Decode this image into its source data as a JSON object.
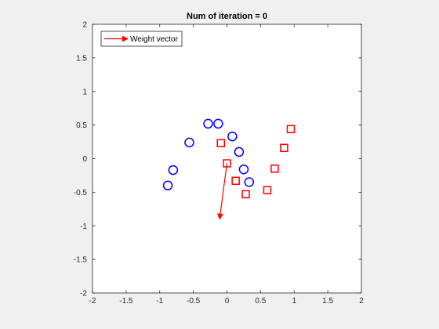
{
  "chart_data": {
    "type": "scatter",
    "title": "Num of iteration = 0",
    "xlabel": "",
    "ylabel": "",
    "xlim": [
      -2,
      2
    ],
    "ylim": [
      -2,
      2
    ],
    "x_ticks": [
      "-2",
      "-1.5",
      "-1",
      "-0.5",
      "0",
      "0.5",
      "1",
      "1.5",
      "2"
    ],
    "y_ticks": [
      "-2",
      "-1.5",
      "-1",
      "-0.5",
      "0",
      "0.5",
      "1",
      "1.5",
      "2"
    ],
    "x_tick_values": [
      -2,
      -1.5,
      -1,
      -0.5,
      0,
      0.5,
      1,
      1.5,
      2
    ],
    "y_tick_values": [
      -2,
      -1.5,
      -1,
      -0.5,
      0,
      0.5,
      1,
      1.5,
      2
    ],
    "grid": false,
    "legend_placement": "top-left",
    "legend_entries": [
      "Weight vector"
    ],
    "series": [
      {
        "marker": "circle",
        "color": "#0000ff",
        "points": [
          {
            "x": -0.88,
            "y": -0.4
          },
          {
            "x": -0.8,
            "y": -0.17
          },
          {
            "x": -0.56,
            "y": 0.24
          },
          {
            "x": -0.28,
            "y": 0.52
          },
          {
            "x": -0.13,
            "y": 0.52
          },
          {
            "x": 0.08,
            "y": 0.33
          },
          {
            "x": 0.18,
            "y": 0.1
          },
          {
            "x": 0.25,
            "y": -0.16
          },
          {
            "x": 0.33,
            "y": -0.35
          }
        ]
      },
      {
        "marker": "square",
        "color": "#ff0000",
        "points": [
          {
            "x": -0.09,
            "y": 0.23
          },
          {
            "x": 0.0,
            "y": -0.07
          },
          {
            "x": 0.13,
            "y": -0.33
          },
          {
            "x": 0.28,
            "y": -0.53
          },
          {
            "x": 0.6,
            "y": -0.47
          },
          {
            "x": 0.71,
            "y": -0.15
          },
          {
            "x": 0.85,
            "y": 0.16
          },
          {
            "x": 0.95,
            "y": 0.44
          }
        ]
      }
    ],
    "weight_vector": {
      "name": "Weight vector",
      "color": "#ff0000",
      "from": {
        "x": 0.0,
        "y": -0.07
      },
      "to": {
        "x": -0.11,
        "y": -0.9
      }
    }
  }
}
